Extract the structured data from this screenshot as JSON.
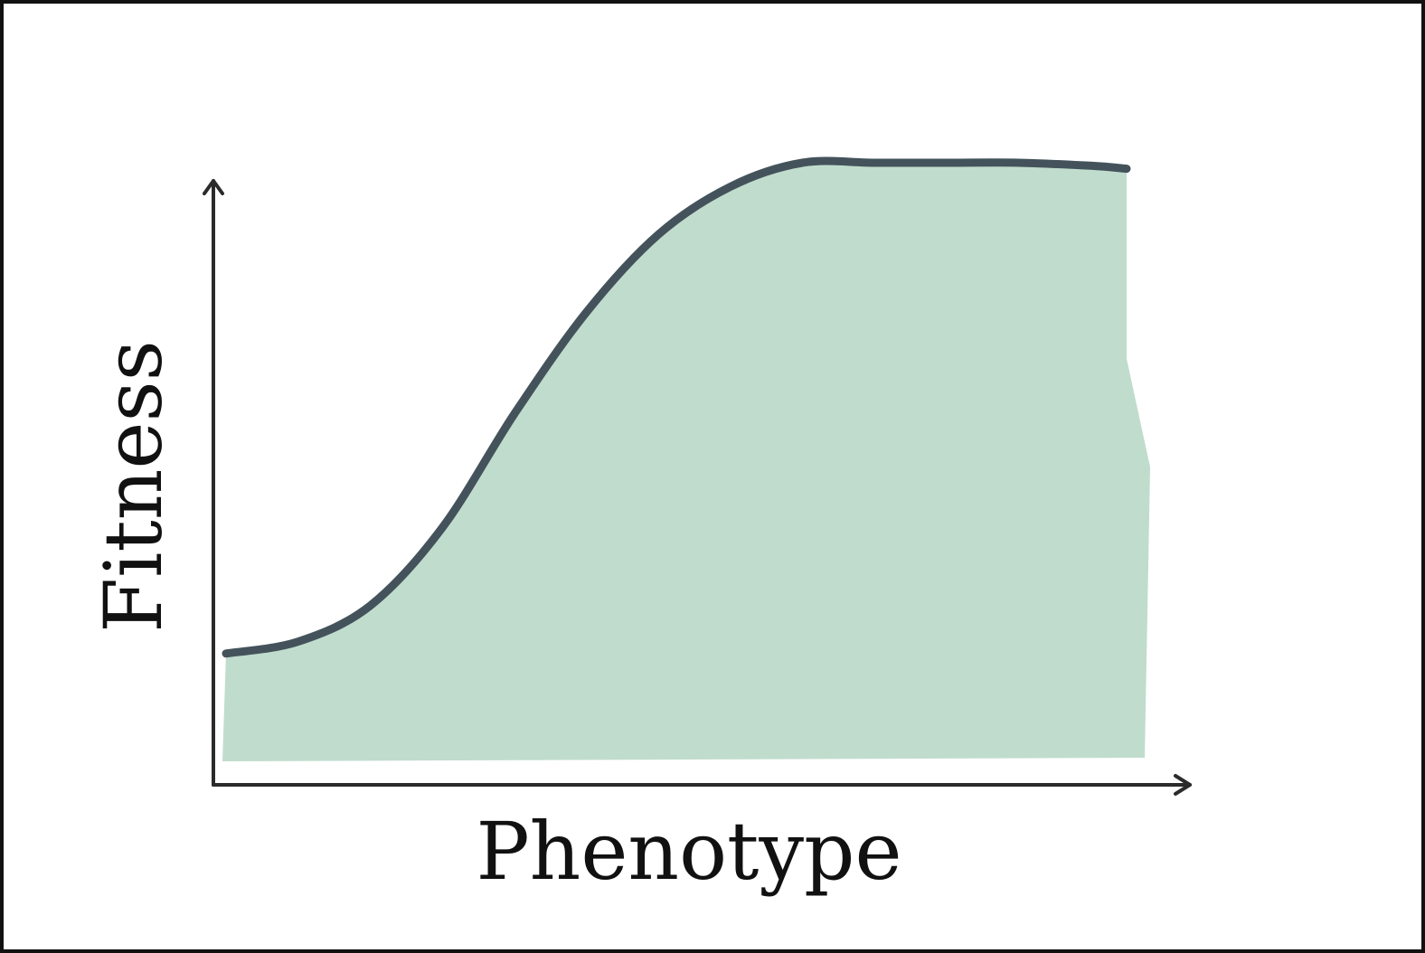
{
  "chart_data": {
    "type": "area",
    "xlabel": "Phenotype",
    "ylabel": "Fitness",
    "x": [
      0,
      0.08,
      0.16,
      0.24,
      0.32,
      0.4,
      0.48,
      0.56,
      0.64,
      0.72,
      0.8,
      0.88,
      0.96,
      1.0
    ],
    "values": [
      0.18,
      0.2,
      0.26,
      0.39,
      0.58,
      0.75,
      0.88,
      0.96,
      1.0,
      1.0,
      1.0,
      1.0,
      0.995,
      0.99
    ],
    "xlim": [
      0,
      1
    ],
    "ylim": [
      0,
      1
    ],
    "grid": false,
    "legend": "none",
    "colors": {
      "fill": "#c0dccd",
      "line": "#44535b",
      "axis": "#2b2b2b",
      "frame": "#111111"
    }
  }
}
